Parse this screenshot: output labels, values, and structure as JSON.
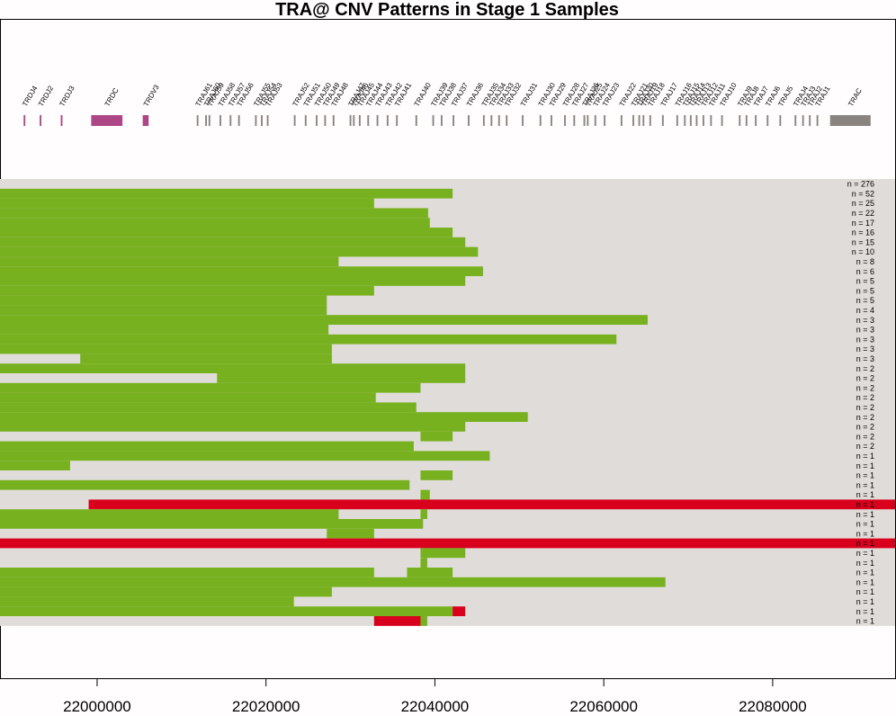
{
  "chart_data": {
    "type": "heatmap",
    "title": "TRA@ CNV Patterns in Stage 1 Samples",
    "xlabel": "",
    "ylabel": "",
    "xlim": [
      21988500,
      22094500
    ],
    "x_ticks": [
      22000000,
      22020000,
      22040000,
      22060000,
      22080000
    ],
    "x_tick_labels": [
      "22000000",
      "22020000",
      "22040000",
      "22060000",
      "22080000"
    ],
    "colors": {
      "background": "#e0dcd9",
      "loss": "#78b120",
      "gain": "#d9001d",
      "trd_gene": "#ad4686",
      "tra_gene": "#8a8480"
    },
    "genes": [
      {
        "name": "TRDJ4",
        "start": 21991300,
        "end": 21991500,
        "group": "trd"
      },
      {
        "name": "TRDJ2",
        "start": 21993200,
        "end": 21993400,
        "group": "trd"
      },
      {
        "name": "TRDJ3",
        "start": 21995700,
        "end": 21995900,
        "group": "trd"
      },
      {
        "name": "TRDC",
        "start": 21999300,
        "end": 22003000,
        "group": "trd"
      },
      {
        "name": "TRDV3",
        "start": 22005400,
        "end": 22006100,
        "group": "trd"
      },
      {
        "name": "TRAJ61",
        "start": 22011800,
        "end": 22012000,
        "group": "tra"
      },
      {
        "name": "TRAJ60",
        "start": 22012800,
        "end": 22013000,
        "group": "tra"
      },
      {
        "name": "TRAJ59",
        "start": 22013200,
        "end": 22013400,
        "group": "tra"
      },
      {
        "name": "TRAJ58",
        "start": 22014500,
        "end": 22014700,
        "group": "tra"
      },
      {
        "name": "TRAJ57",
        "start": 22015700,
        "end": 22015900,
        "group": "tra"
      },
      {
        "name": "TRAJ56",
        "start": 22016700,
        "end": 22016900,
        "group": "tra"
      },
      {
        "name": "TRAJ55",
        "start": 22018700,
        "end": 22018900,
        "group": "tra"
      },
      {
        "name": "TRAJ54",
        "start": 22019400,
        "end": 22019600,
        "group": "tra"
      },
      {
        "name": "TRAJ53",
        "start": 22020100,
        "end": 22020300,
        "group": "tra"
      },
      {
        "name": "TRAJ52",
        "start": 22023300,
        "end": 22023500,
        "group": "tra"
      },
      {
        "name": "TRAJ51",
        "start": 22024600,
        "end": 22024800,
        "group": "tra"
      },
      {
        "name": "TRAJ50",
        "start": 22025900,
        "end": 22026100,
        "group": "tra"
      },
      {
        "name": "TRAJ49",
        "start": 22026900,
        "end": 22027100,
        "group": "tra"
      },
      {
        "name": "TRAJ48",
        "start": 22027900,
        "end": 22028100,
        "group": "tra"
      },
      {
        "name": "TRAJ47",
        "start": 22029900,
        "end": 22030100,
        "group": "tra"
      },
      {
        "name": "TRAJ46",
        "start": 22030300,
        "end": 22030500,
        "group": "tra"
      },
      {
        "name": "TRAJ45",
        "start": 22031000,
        "end": 22031200,
        "group": "tra"
      },
      {
        "name": "TRAJ44",
        "start": 22032000,
        "end": 22032200,
        "group": "tra"
      },
      {
        "name": "TRAJ43",
        "start": 22033100,
        "end": 22033300,
        "group": "tra"
      },
      {
        "name": "TRAJ42",
        "start": 22034300,
        "end": 22034500,
        "group": "tra"
      },
      {
        "name": "TRAJ41",
        "start": 22035400,
        "end": 22035600,
        "group": "tra"
      },
      {
        "name": "TRAJ40",
        "start": 22037700,
        "end": 22037900,
        "group": "tra"
      },
      {
        "name": "TRAJ39",
        "start": 22039700,
        "end": 22039900,
        "group": "tra"
      },
      {
        "name": "TRAJ38",
        "start": 22040700,
        "end": 22040900,
        "group": "tra"
      },
      {
        "name": "TRAJ37",
        "start": 22042100,
        "end": 22042300,
        "group": "tra"
      },
      {
        "name": "TRAJ36",
        "start": 22043900,
        "end": 22044100,
        "group": "tra"
      },
      {
        "name": "TRAJ35",
        "start": 22045700,
        "end": 22045900,
        "group": "tra"
      },
      {
        "name": "TRAJ34",
        "start": 22046600,
        "end": 22046800,
        "group": "tra"
      },
      {
        "name": "TRAJ33",
        "start": 22047500,
        "end": 22047700,
        "group": "tra"
      },
      {
        "name": "TRAJ32",
        "start": 22048400,
        "end": 22048600,
        "group": "tra"
      },
      {
        "name": "TRAJ31",
        "start": 22050300,
        "end": 22050500,
        "group": "tra"
      },
      {
        "name": "TRAJ30",
        "start": 22052400,
        "end": 22052600,
        "group": "tra"
      },
      {
        "name": "TRAJ29",
        "start": 22053700,
        "end": 22053900,
        "group": "tra"
      },
      {
        "name": "TRAJ28",
        "start": 22055300,
        "end": 22055500,
        "group": "tra"
      },
      {
        "name": "TRAJ27",
        "start": 22056400,
        "end": 22056600,
        "group": "tra"
      },
      {
        "name": "TRAJ26",
        "start": 22057600,
        "end": 22057800,
        "group": "tra"
      },
      {
        "name": "TRAJ25",
        "start": 22058000,
        "end": 22058200,
        "group": "tra"
      },
      {
        "name": "TRAJ24",
        "start": 22058900,
        "end": 22059100,
        "group": "tra"
      },
      {
        "name": "TRAJ23",
        "start": 22060000,
        "end": 22060200,
        "group": "tra"
      },
      {
        "name": "TRAJ22",
        "start": 22062000,
        "end": 22062200,
        "group": "tra"
      },
      {
        "name": "TRAJ21",
        "start": 22063400,
        "end": 22063600,
        "group": "tra"
      },
      {
        "name": "TRAJ20",
        "start": 22064100,
        "end": 22064300,
        "group": "tra"
      },
      {
        "name": "TRAJ19",
        "start": 22064600,
        "end": 22064800,
        "group": "tra"
      },
      {
        "name": "TRAJ18",
        "start": 22065400,
        "end": 22065600,
        "group": "tra"
      },
      {
        "name": "TRAJ17",
        "start": 22066900,
        "end": 22067100,
        "group": "tra"
      },
      {
        "name": "TRAJ16",
        "start": 22068600,
        "end": 22068800,
        "group": "tra"
      },
      {
        "name": "TRAJ15",
        "start": 22069500,
        "end": 22069700,
        "group": "tra"
      },
      {
        "name": "TRAJ14",
        "start": 22070200,
        "end": 22070400,
        "group": "tra"
      },
      {
        "name": "TRAJ13",
        "start": 22070900,
        "end": 22071100,
        "group": "tra"
      },
      {
        "name": "TRAJ12",
        "start": 22071700,
        "end": 22071900,
        "group": "tra"
      },
      {
        "name": "TRAJ11",
        "start": 22072600,
        "end": 22072800,
        "group": "tra"
      },
      {
        "name": "TRAJ10",
        "start": 22073900,
        "end": 22074100,
        "group": "tra"
      },
      {
        "name": "TRAJ9",
        "start": 22076000,
        "end": 22076200,
        "group": "tra"
      },
      {
        "name": "TRAJ8",
        "start": 22076800,
        "end": 22077000,
        "group": "tra"
      },
      {
        "name": "TRAJ7",
        "start": 22077900,
        "end": 22078100,
        "group": "tra"
      },
      {
        "name": "TRAJ6",
        "start": 22079300,
        "end": 22079500,
        "group": "tra"
      },
      {
        "name": "TRAJ5",
        "start": 22080800,
        "end": 22081000,
        "group": "tra"
      },
      {
        "name": "TRAJ4",
        "start": 22082600,
        "end": 22082800,
        "group": "tra"
      },
      {
        "name": "TRAJ3",
        "start": 22083500,
        "end": 22083700,
        "group": "tra"
      },
      {
        "name": "TRAJ2",
        "start": 22084300,
        "end": 22084500,
        "group": "tra"
      },
      {
        "name": "TRAJ1",
        "start": 22085200,
        "end": 22085400,
        "group": "tra"
      },
      {
        "name": "TRAC",
        "start": 22086800,
        "end": 22091600,
        "group": "tra"
      }
    ],
    "rows": [
      {
        "n": "n = 276",
        "segments": []
      },
      {
        "n": "n = 52",
        "segments": [
          {
            "start": 21988500,
            "end": 22042100,
            "type": "loss"
          }
        ]
      },
      {
        "n": "n = 25",
        "segments": [
          {
            "start": 21988500,
            "end": 22032800,
            "type": "loss"
          }
        ]
      },
      {
        "n": "n = 22",
        "segments": [
          {
            "start": 21988500,
            "end": 22039200,
            "type": "loss"
          }
        ]
      },
      {
        "n": "n = 17",
        "segments": [
          {
            "start": 21988500,
            "end": 22039400,
            "type": "loss"
          }
        ]
      },
      {
        "n": "n = 16",
        "segments": [
          {
            "start": 21988500,
            "end": 22042100,
            "type": "loss"
          }
        ]
      },
      {
        "n": "n = 15",
        "segments": [
          {
            "start": 21988500,
            "end": 22043600,
            "type": "loss"
          }
        ]
      },
      {
        "n": "n = 10",
        "segments": [
          {
            "start": 21988500,
            "end": 22045100,
            "type": "loss"
          }
        ]
      },
      {
        "n": "n = 8",
        "segments": [
          {
            "start": 21988500,
            "end": 22028600,
            "type": "loss"
          }
        ]
      },
      {
        "n": "n = 6",
        "segments": [
          {
            "start": 21988500,
            "end": 22045700,
            "type": "loss"
          }
        ]
      },
      {
        "n": "n = 5",
        "segments": [
          {
            "start": 21988500,
            "end": 22043600,
            "type": "loss"
          }
        ]
      },
      {
        "n": "n = 5",
        "segments": [
          {
            "start": 21988500,
            "end": 22032800,
            "type": "loss"
          }
        ]
      },
      {
        "n": "n = 5",
        "segments": [
          {
            "start": 21988500,
            "end": 22027200,
            "type": "loss"
          }
        ]
      },
      {
        "n": "n = 4",
        "segments": [
          {
            "start": 21988500,
            "end": 22027200,
            "type": "loss"
          }
        ]
      },
      {
        "n": "n = 3",
        "segments": [
          {
            "start": 21988500,
            "end": 22065200,
            "type": "loss"
          }
        ]
      },
      {
        "n": "n = 3",
        "segments": [
          {
            "start": 21988500,
            "end": 22027400,
            "type": "loss"
          }
        ]
      },
      {
        "n": "n = 3",
        "segments": [
          {
            "start": 21988500,
            "end": 22061500,
            "type": "loss"
          }
        ]
      },
      {
        "n": "n = 3",
        "segments": [
          {
            "start": 21988500,
            "end": 22027800,
            "type": "loss"
          }
        ]
      },
      {
        "n": "n = 3",
        "segments": [
          {
            "start": 21998000,
            "end": 22027800,
            "type": "loss"
          }
        ]
      },
      {
        "n": "n = 2",
        "segments": [
          {
            "start": 21988500,
            "end": 22043600,
            "type": "loss"
          }
        ]
      },
      {
        "n": "n = 2",
        "segments": [
          {
            "start": 22014200,
            "end": 22043600,
            "type": "loss"
          }
        ]
      },
      {
        "n": "n = 2",
        "segments": [
          {
            "start": 21988500,
            "end": 22038300,
            "type": "loss"
          }
        ]
      },
      {
        "n": "n = 2",
        "segments": [
          {
            "start": 21988500,
            "end": 22033000,
            "type": "loss"
          }
        ]
      },
      {
        "n": "n = 2",
        "segments": [
          {
            "start": 21988500,
            "end": 22037800,
            "type": "loss"
          }
        ]
      },
      {
        "n": "n = 2",
        "segments": [
          {
            "start": 21988500,
            "end": 22051000,
            "type": "loss"
          }
        ]
      },
      {
        "n": "n = 2",
        "segments": [
          {
            "start": 21988500,
            "end": 22043600,
            "type": "loss"
          }
        ]
      },
      {
        "n": "n = 2",
        "segments": [
          {
            "start": 22038300,
            "end": 22042100,
            "type": "loss"
          }
        ]
      },
      {
        "n": "n = 2",
        "segments": [
          {
            "start": 21988500,
            "end": 22037500,
            "type": "loss"
          }
        ]
      },
      {
        "n": "n = 1",
        "segments": [
          {
            "start": 21988500,
            "end": 22046500,
            "type": "loss"
          }
        ]
      },
      {
        "n": "n = 1",
        "segments": [
          {
            "start": 21988500,
            "end": 21996800,
            "type": "loss"
          }
        ]
      },
      {
        "n": "n = 1",
        "segments": [
          {
            "start": 22038300,
            "end": 22042100,
            "type": "loss"
          }
        ]
      },
      {
        "n": "n = 1",
        "segments": [
          {
            "start": 21988500,
            "end": 22037000,
            "type": "loss"
          }
        ]
      },
      {
        "n": "n = 1",
        "segments": [
          {
            "start": 22038300,
            "end": 22039400,
            "type": "loss"
          }
        ]
      },
      {
        "n": "n = 1",
        "segments": [
          {
            "start": 21999000,
            "end": 22094500,
            "type": "gain"
          }
        ]
      },
      {
        "n": "n = 1",
        "segments": [
          {
            "start": 21988500,
            "end": 22028600,
            "type": "loss"
          },
          {
            "start": 22038300,
            "end": 22039100,
            "type": "loss"
          }
        ]
      },
      {
        "n": "n = 1",
        "segments": [
          {
            "start": 21988500,
            "end": 22038600,
            "type": "loss"
          }
        ]
      },
      {
        "n": "n = 1",
        "segments": [
          {
            "start": 22027200,
            "end": 22032800,
            "type": "loss"
          }
        ]
      },
      {
        "n": "n = 1",
        "segments": [
          {
            "start": 21988500,
            "end": 22094500,
            "type": "gain"
          }
        ]
      },
      {
        "n": "n = 1",
        "segments": [
          {
            "start": 22038300,
            "end": 22043600,
            "type": "loss"
          }
        ]
      },
      {
        "n": "n = 1",
        "segments": [
          {
            "start": 22038300,
            "end": 22039100,
            "type": "loss"
          }
        ]
      },
      {
        "n": "n = 1",
        "segments": [
          {
            "start": 21988500,
            "end": 22032800,
            "type": "loss"
          },
          {
            "start": 22036700,
            "end": 22042100,
            "type": "loss"
          }
        ]
      },
      {
        "n": "n = 1",
        "segments": [
          {
            "start": 21988500,
            "end": 22067300,
            "type": "loss"
          }
        ]
      },
      {
        "n": "n = 1",
        "segments": [
          {
            "start": 21988500,
            "end": 22027800,
            "type": "loss"
          }
        ]
      },
      {
        "n": "n = 1",
        "segments": [
          {
            "start": 21988500,
            "end": 22023300,
            "type": "loss"
          }
        ]
      },
      {
        "n": "n = 1",
        "segments": [
          {
            "start": 21988500,
            "end": 22042100,
            "type": "loss"
          },
          {
            "start": 22042100,
            "end": 22043600,
            "type": "gain"
          }
        ]
      },
      {
        "n": "n = 1",
        "segments": [
          {
            "start": 22032800,
            "end": 22038300,
            "type": "gain"
          },
          {
            "start": 22038300,
            "end": 22039100,
            "type": "loss"
          }
        ]
      }
    ]
  }
}
